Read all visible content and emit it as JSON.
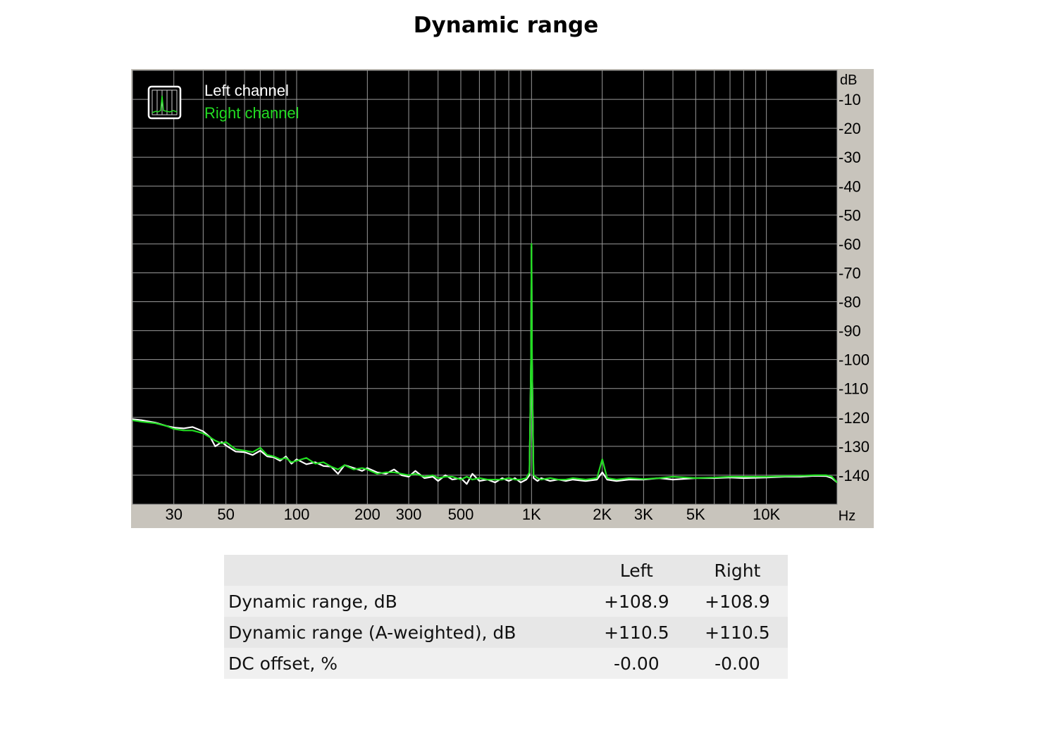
{
  "page": {
    "title": "Dynamic range"
  },
  "chart_data": {
    "type": "line",
    "x_scale": "log",
    "x_range": [
      20,
      20000
    ],
    "y_range": [
      -150,
      0
    ],
    "grid": true,
    "y_unit_label": "dB",
    "x_unit_label": "Hz",
    "y_ticks": [
      -10,
      -20,
      -30,
      -40,
      -50,
      -60,
      -70,
      -80,
      -90,
      -100,
      -110,
      -120,
      -130,
      -140
    ],
    "x_ticks": [
      {
        "value": 30,
        "label": "30"
      },
      {
        "value": 50,
        "label": "50"
      },
      {
        "value": 100,
        "label": "100"
      },
      {
        "value": 200,
        "label": "200"
      },
      {
        "value": 300,
        "label": "300"
      },
      {
        "value": 500,
        "label": "500"
      },
      {
        "value": 1000,
        "label": "1K"
      },
      {
        "value": 2000,
        "label": "2K"
      },
      {
        "value": 3000,
        "label": "3K"
      },
      {
        "value": 5000,
        "label": "5K"
      },
      {
        "value": 10000,
        "label": "10K"
      }
    ],
    "legend_position": "top-left",
    "colors": {
      "background": "#000000",
      "grid": "#9a9a9a",
      "frame": "#c8c4bc",
      "left": "#ffffff",
      "right": "#22dd22"
    },
    "series": [
      {
        "name": "Left channel",
        "color": "#ffffff",
        "points": [
          [
            20,
            -120.6
          ],
          [
            22,
            -121
          ],
          [
            25,
            -121.8
          ],
          [
            28,
            -123
          ],
          [
            30,
            -123.5
          ],
          [
            33,
            -123.8
          ],
          [
            36,
            -123.3
          ],
          [
            40,
            -124.8
          ],
          [
            43,
            -127
          ],
          [
            45,
            -130
          ],
          [
            48,
            -128.5
          ],
          [
            50,
            -129.7
          ],
          [
            55,
            -131.8
          ],
          [
            60,
            -132
          ],
          [
            65,
            -133
          ],
          [
            70,
            -131.5
          ],
          [
            75,
            -133.5
          ],
          [
            80,
            -133.8
          ],
          [
            85,
            -135
          ],
          [
            90,
            -133.5
          ],
          [
            95,
            -136
          ],
          [
            100,
            -134.5
          ],
          [
            110,
            -136.2
          ],
          [
            120,
            -135.5
          ],
          [
            130,
            -136.8
          ],
          [
            140,
            -137
          ],
          [
            150,
            -139.5
          ],
          [
            160,
            -136.5
          ],
          [
            175,
            -137.5
          ],
          [
            190,
            -138.5
          ],
          [
            200,
            -137.5
          ],
          [
            220,
            -139
          ],
          [
            240,
            -139.5
          ],
          [
            260,
            -138
          ],
          [
            280,
            -140
          ],
          [
            300,
            -140.5
          ],
          [
            320,
            -138.5
          ],
          [
            350,
            -141
          ],
          [
            380,
            -140.5
          ],
          [
            400,
            -142
          ],
          [
            430,
            -140
          ],
          [
            460,
            -141.5
          ],
          [
            500,
            -141
          ],
          [
            530,
            -143
          ],
          [
            560,
            -139.5
          ],
          [
            600,
            -142
          ],
          [
            650,
            -141.5
          ],
          [
            700,
            -142.5
          ],
          [
            750,
            -141
          ],
          [
            800,
            -142
          ],
          [
            850,
            -141
          ],
          [
            900,
            -142.5
          ],
          [
            950,
            -141.5
          ],
          [
            980,
            -140
          ],
          [
            995,
            -100
          ],
          [
            1000,
            -61
          ],
          [
            1005,
            -100
          ],
          [
            1020,
            -141
          ],
          [
            1060,
            -142
          ],
          [
            1100,
            -141
          ],
          [
            1200,
            -142
          ],
          [
            1300,
            -141.5
          ],
          [
            1400,
            -142
          ],
          [
            1500,
            -141.5
          ],
          [
            1700,
            -142
          ],
          [
            1900,
            -141.5
          ],
          [
            2000,
            -139
          ],
          [
            2100,
            -141.5
          ],
          [
            2300,
            -142
          ],
          [
            2600,
            -141.5
          ],
          [
            3000,
            -141.5
          ],
          [
            3500,
            -141
          ],
          [
            4000,
            -141.5
          ],
          [
            5000,
            -141
          ],
          [
            6000,
            -141
          ],
          [
            7000,
            -140.8
          ],
          [
            8000,
            -141
          ],
          [
            10000,
            -140.8
          ],
          [
            12000,
            -140.5
          ],
          [
            14000,
            -140.5
          ],
          [
            16000,
            -140.2
          ],
          [
            18000,
            -140.3
          ],
          [
            19000,
            -141
          ],
          [
            20000,
            -142.5
          ]
        ]
      },
      {
        "name": "Right channel",
        "color": "#22dd22",
        "points": [
          [
            20,
            -121
          ],
          [
            22,
            -121.5
          ],
          [
            25,
            -122
          ],
          [
            28,
            -123
          ],
          [
            30,
            -124
          ],
          [
            33,
            -124.5
          ],
          [
            36,
            -124.5
          ],
          [
            40,
            -125.5
          ],
          [
            43,
            -127
          ],
          [
            45,
            -128
          ],
          [
            48,
            -129
          ],
          [
            50,
            -128.5
          ],
          [
            55,
            -131
          ],
          [
            60,
            -131.5
          ],
          [
            65,
            -132
          ],
          [
            70,
            -130.5
          ],
          [
            75,
            -133
          ],
          [
            80,
            -133.5
          ],
          [
            85,
            -134.5
          ],
          [
            90,
            -134
          ],
          [
            95,
            -135.5
          ],
          [
            100,
            -135
          ],
          [
            110,
            -134
          ],
          [
            120,
            -136
          ],
          [
            130,
            -135.5
          ],
          [
            140,
            -137
          ],
          [
            150,
            -138
          ],
          [
            160,
            -136.5
          ],
          [
            175,
            -138
          ],
          [
            190,
            -137.5
          ],
          [
            200,
            -138
          ],
          [
            220,
            -139.5
          ],
          [
            240,
            -139
          ],
          [
            260,
            -139
          ],
          [
            280,
            -139.5
          ],
          [
            300,
            -140
          ],
          [
            320,
            -139.5
          ],
          [
            350,
            -140.5
          ],
          [
            380,
            -140
          ],
          [
            400,
            -141
          ],
          [
            430,
            -140.5
          ],
          [
            460,
            -140.5
          ],
          [
            500,
            -141.5
          ],
          [
            530,
            -140.5
          ],
          [
            560,
            -141.5
          ],
          [
            600,
            -141
          ],
          [
            650,
            -141.5
          ],
          [
            700,
            -141.5
          ],
          [
            750,
            -141.5
          ],
          [
            800,
            -141
          ],
          [
            850,
            -141.5
          ],
          [
            900,
            -141.5
          ],
          [
            950,
            -141
          ],
          [
            980,
            -139
          ],
          [
            995,
            -100
          ],
          [
            1000,
            -60
          ],
          [
            1005,
            -100
          ],
          [
            1020,
            -140
          ],
          [
            1060,
            -141
          ],
          [
            1100,
            -141.5
          ],
          [
            1200,
            -141
          ],
          [
            1300,
            -141.5
          ],
          [
            1400,
            -141.5
          ],
          [
            1500,
            -141
          ],
          [
            1700,
            -141.5
          ],
          [
            1900,
            -141
          ],
          [
            2000,
            -134.5
          ],
          [
            2100,
            -141
          ],
          [
            2300,
            -141.5
          ],
          [
            2600,
            -141
          ],
          [
            3000,
            -141.3
          ],
          [
            3500,
            -141
          ],
          [
            4000,
            -140.5
          ],
          [
            5000,
            -141
          ],
          [
            6000,
            -140.8
          ],
          [
            7000,
            -140.5
          ],
          [
            8000,
            -140.5
          ],
          [
            10000,
            -140.5
          ],
          [
            12000,
            -140.3
          ],
          [
            14000,
            -140.2
          ],
          [
            16000,
            -140
          ],
          [
            18000,
            -140
          ],
          [
            19000,
            -140.5
          ],
          [
            20000,
            -142.5
          ]
        ]
      }
    ]
  },
  "table": {
    "headers": [
      "",
      "Left",
      "Right"
    ],
    "rows": [
      {
        "label": "Dynamic range, dB",
        "left": "+108.9",
        "right": "+108.9"
      },
      {
        "label": "Dynamic range (A-weighted), dB",
        "left": "+110.5",
        "right": "+110.5"
      },
      {
        "label": "DC offset, %",
        "left": "-0.00",
        "right": "-0.00"
      }
    ]
  }
}
